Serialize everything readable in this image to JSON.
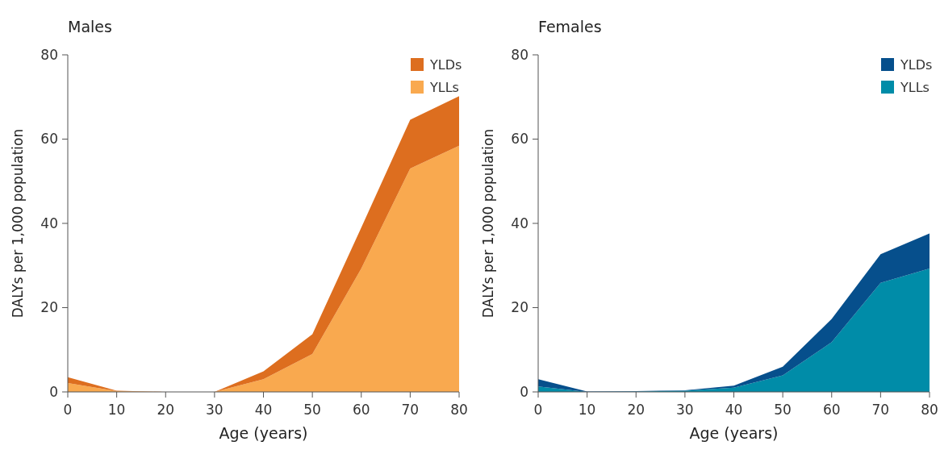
{
  "chart_data": [
    {
      "type": "area",
      "stacked": true,
      "title": "Males",
      "xlabel": "Age (years)",
      "ylabel": "DALYs per 1,000 population",
      "x": [
        0,
        10,
        20,
        30,
        40,
        50,
        60,
        70,
        80
      ],
      "xlim": [
        0,
        80
      ],
      "xticks": [
        0,
        10,
        20,
        30,
        40,
        50,
        60,
        70,
        80
      ],
      "ylim": [
        0,
        80
      ],
      "yticks": [
        0,
        20,
        40,
        60,
        80
      ],
      "legend": "top right",
      "series": [
        {
          "name": "YLLs",
          "color": "#f9a94f",
          "values": [
            2.1,
            0.2,
            0,
            0,
            3,
            9,
            29.3,
            53,
            58.4
          ]
        },
        {
          "name": "YLDs",
          "color": "#dd6e1f",
          "values": [
            1.4,
            0.1,
            0,
            0,
            1.9,
            4.7,
            9.7,
            11.6,
            11.8
          ]
        }
      ]
    },
    {
      "type": "area",
      "stacked": true,
      "title": "Females",
      "xlabel": "Age (years)",
      "ylabel": "DALYs per 1,000 population",
      "x": [
        0,
        10,
        20,
        30,
        40,
        50,
        60,
        70,
        80
      ],
      "xlim": [
        0,
        80
      ],
      "xticks": [
        0,
        10,
        20,
        30,
        40,
        50,
        60,
        70,
        80
      ],
      "ylim": [
        0,
        80
      ],
      "yticks": [
        0,
        20,
        40,
        60,
        80
      ],
      "legend": "top right",
      "series": [
        {
          "name": "YLLs",
          "color": "#008ca8",
          "values": [
            1.3,
            0,
            0.1,
            0.3,
            1,
            3.9,
            11.8,
            25.9,
            29.3
          ]
        },
        {
          "name": "YLDs",
          "color": "#064f8c",
          "values": [
            1.7,
            0.1,
            0.1,
            0.1,
            0.5,
            2.1,
            5.5,
            6.8,
            8.3
          ]
        }
      ]
    }
  ]
}
